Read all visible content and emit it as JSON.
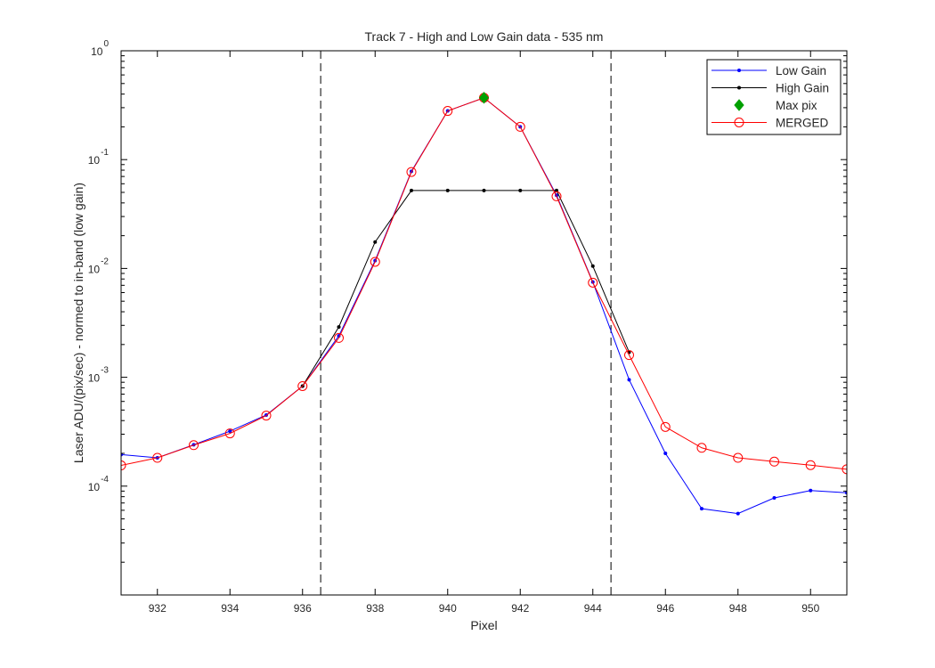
{
  "chart_data": {
    "type": "line",
    "title": "Track 7 - High and Low Gain data - 535 nm",
    "xlabel": "Pixel",
    "ylabel": "Laser ADU/(pix/sec) - normed to in-band (low gain)",
    "xlim": [
      931,
      951
    ],
    "ylim": [
      1e-05,
      1
    ],
    "yscale": "log",
    "grid": false,
    "legend_position": "top-right",
    "xticks": [
      932,
      934,
      936,
      938,
      940,
      942,
      944,
      946,
      948,
      950
    ],
    "yticks": [
      {
        "base": "10",
        "exp": "0",
        "value": 1
      },
      {
        "base": "10",
        "exp": "-1",
        "value": 0.1
      },
      {
        "base": "10",
        "exp": "-2",
        "value": 0.01
      },
      {
        "base": "10",
        "exp": "-3",
        "value": 0.001
      },
      {
        "base": "10",
        "exp": "-4",
        "value": 0.0001
      }
    ],
    "vlines": [
      936.5,
      944.5
    ],
    "series": [
      {
        "name": "Low Gain",
        "color": "#0000ff",
        "marker": "dot",
        "x": [
          931,
          932,
          933,
          934,
          935,
          936,
          937,
          938,
          939,
          940,
          941,
          942,
          943,
          944,
          945,
          946,
          947,
          948,
          949,
          950,
          951
        ],
        "y": [
          0.000195,
          0.000182,
          0.00024,
          0.00032,
          0.00045,
          0.00083,
          0.0024,
          0.0118,
          0.078,
          0.28,
          0.37,
          0.2,
          0.047,
          0.0075,
          0.00095,
          0.0002,
          6.2e-05,
          5.6e-05,
          7.8e-05,
          9.1e-05,
          8.7e-05
        ]
      },
      {
        "name": "High Gain",
        "color": "#000000",
        "marker": "dot",
        "x": [
          936,
          937,
          938,
          939,
          940,
          941,
          942,
          943,
          944,
          945
        ],
        "y": [
          0.00083,
          0.0029,
          0.0175,
          0.052,
          0.052,
          0.052,
          0.052,
          0.052,
          0.0105,
          0.0017
        ]
      },
      {
        "name": "Max pix",
        "color": "#00a000",
        "marker": "diamond",
        "x": [
          941
        ],
        "y": [
          0.37
        ]
      },
      {
        "name": "MERGED",
        "color": "#ff0000",
        "marker": "circle",
        "x": [
          931,
          932,
          933,
          934,
          935,
          936,
          937,
          938,
          939,
          940,
          941,
          942,
          943,
          944,
          945,
          946,
          947,
          948,
          949,
          950,
          951
        ],
        "y": [
          0.000155,
          0.000182,
          0.000238,
          0.000305,
          0.000445,
          0.00083,
          0.0023,
          0.0115,
          0.077,
          0.28,
          0.37,
          0.2,
          0.046,
          0.0074,
          0.0016,
          0.00035,
          0.000225,
          0.000182,
          0.000168,
          0.000156,
          0.000143
        ]
      }
    ]
  }
}
